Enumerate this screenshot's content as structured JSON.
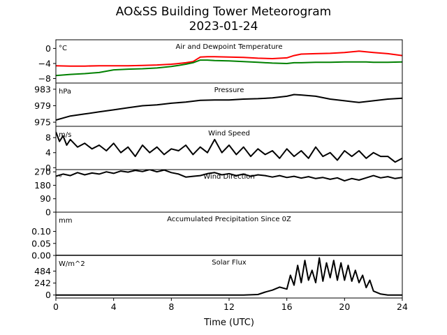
{
  "figure": {
    "title": "AO&SS Building Tower Meteorogram",
    "subtitle": "2023-01-24",
    "xlabel": "Time (UTC)",
    "xlim": [
      0,
      24
    ],
    "xticks": [
      "0",
      "4",
      "8",
      "12",
      "16",
      "20",
      "24"
    ]
  },
  "chart_data": [
    {
      "type": "line",
      "title": "Air and Dewpoint Temperature",
      "unit": "°C",
      "ylim": [
        -9.2,
        2.3
      ],
      "yticks": [
        0,
        -4,
        -8
      ],
      "ytick_labels": [
        "0",
        "−4",
        "−8"
      ],
      "x": [
        0,
        1,
        2,
        3,
        4,
        5,
        6,
        7,
        8,
        8.5,
        9,
        9.5,
        10,
        10.5,
        11,
        12,
        13,
        14,
        15,
        16,
        16.5,
        17,
        18,
        19,
        20,
        20.5,
        21,
        21.5,
        22,
        23,
        24
      ],
      "series": [
        {
          "color": "#ff0000",
          "values": [
            -4.6,
            -4.7,
            -4.7,
            -4.6,
            -4.6,
            -4.6,
            -4.5,
            -4.4,
            -4.2,
            -4.0,
            -3.8,
            -3.5,
            -2.3,
            -2.2,
            -2.2,
            -2.3,
            -2.4,
            -2.6,
            -2.7,
            -2.5,
            -1.9,
            -1.5,
            -1.4,
            -1.3,
            -1.1,
            -0.9,
            -0.7,
            -0.9,
            -1.1,
            -1.4,
            -1.9
          ]
        },
        {
          "color": "#008000",
          "values": [
            -7.2,
            -6.9,
            -6.7,
            -6.4,
            -5.7,
            -5.5,
            -5.4,
            -5.2,
            -4.8,
            -4.5,
            -4.2,
            -3.8,
            -3.1,
            -3.1,
            -3.2,
            -3.3,
            -3.5,
            -3.7,
            -3.9,
            -4.0,
            -3.8,
            -3.8,
            -3.7,
            -3.7,
            -3.6,
            -3.6,
            -3.6,
            -3.6,
            -3.7,
            -3.7,
            -3.6
          ]
        }
      ]
    },
    {
      "type": "line",
      "title": "Pressure",
      "unit": "hPa",
      "ylim": [
        974.0,
        984.5
      ],
      "yticks": [
        975,
        979,
        983
      ],
      "x": [
        0,
        1,
        2,
        3,
        4,
        5,
        6,
        7,
        8,
        9,
        10,
        11,
        12,
        13,
        14,
        15,
        16,
        16.5,
        17,
        18,
        19,
        20,
        21,
        22,
        23,
        24
      ],
      "series": [
        {
          "color": "#000000",
          "values": [
            975.5,
            976.5,
            977.0,
            977.5,
            978.0,
            978.5,
            979.0,
            979.2,
            979.6,
            979.9,
            980.3,
            980.4,
            980.4,
            980.6,
            980.7,
            980.9,
            981.3,
            981.7,
            981.6,
            981.3,
            980.6,
            980.2,
            979.8,
            980.2,
            980.6,
            980.8
          ]
        }
      ]
    },
    {
      "type": "line",
      "title": "Wind Speed",
      "unit": "m/s",
      "ylim": [
        -0.5,
        11.0
      ],
      "yticks": [
        0,
        4,
        8
      ],
      "x": [
        0,
        0.25,
        0.5,
        0.75,
        1,
        1.5,
        2,
        2.5,
        3,
        3.5,
        4,
        4.5,
        5,
        5.5,
        6,
        6.5,
        7,
        7.5,
        8,
        8.5,
        9,
        9.5,
        10,
        10.5,
        11,
        11.5,
        12,
        12.5,
        13,
        13.5,
        14,
        14.5,
        15,
        15.5,
        16,
        16.5,
        17,
        17.5,
        18,
        18.5,
        19,
        19.5,
        20,
        20.5,
        21,
        21.5,
        22,
        22.5,
        23,
        23.5,
        24
      ],
      "series": [
        {
          "color": "#000000",
          "values": [
            9.5,
            7.0,
            8.5,
            6.0,
            7.5,
            5.5,
            6.5,
            5.0,
            6.0,
            4.5,
            6.5,
            4.0,
            5.5,
            3.0,
            6.0,
            4.0,
            5.5,
            3.5,
            5.0,
            4.5,
            6.0,
            3.5,
            5.5,
            4.0,
            7.5,
            4.0,
            6.0,
            3.5,
            5.5,
            3.0,
            5.0,
            3.5,
            4.5,
            2.5,
            5.0,
            3.0,
            4.5,
            2.5,
            5.5,
            3.0,
            4.0,
            2.0,
            4.5,
            3.0,
            4.5,
            2.5,
            4.0,
            3.0,
            3.0,
            1.5,
            2.5
          ]
        }
      ]
    },
    {
      "type": "line",
      "title": "Wind Direction",
      "unit": "°",
      "ylim": [
        0,
        285
      ],
      "yticks": [
        0,
        90,
        180,
        270
      ],
      "x": [
        0,
        0.5,
        1,
        1.5,
        2,
        2.5,
        3,
        3.5,
        4,
        4.5,
        5,
        5.5,
        6,
        6.5,
        7,
        7.5,
        8,
        8.5,
        9,
        9.5,
        10,
        10.5,
        11,
        11.5,
        12,
        12.5,
        13,
        13.5,
        14,
        14.5,
        15,
        15.5,
        16,
        16.5,
        17,
        17.5,
        18,
        18.5,
        19,
        19.5,
        20,
        20.5,
        21,
        21.5,
        22,
        22.5,
        23,
        23.5,
        24
      ],
      "series": [
        {
          "color": "#000000",
          "values": [
            240,
            255,
            245,
            265,
            250,
            262,
            255,
            270,
            260,
            275,
            268,
            280,
            272,
            285,
            270,
            282,
            265,
            255,
            235,
            240,
            245,
            258,
            265,
            250,
            258,
            245,
            255,
            240,
            250,
            245,
            235,
            245,
            232,
            240,
            228,
            238,
            225,
            232,
            220,
            230,
            210,
            225,
            215,
            230,
            245,
            230,
            238,
            225,
            232
          ]
        }
      ]
    },
    {
      "type": "line",
      "title": "Accumulated Precipitation Since 0Z",
      "unit": "mm",
      "ylim": [
        0,
        0.18
      ],
      "yticks": [
        0.0,
        0.05,
        0.1
      ],
      "ytick_labels": [
        "0.00",
        "0.05",
        "0.10"
      ],
      "x": [
        0,
        24
      ],
      "series": [
        {
          "color": "#000000",
          "values": [
            0.0,
            0.0
          ]
        }
      ]
    },
    {
      "type": "line",
      "title": "Solar Flux",
      "unit": "W/m^2",
      "ylim": [
        -60,
        800
      ],
      "yticks": [
        0,
        242,
        484
      ],
      "x": [
        0,
        13,
        14,
        14.5,
        15,
        15.5,
        16,
        16.25,
        16.5,
        16.75,
        17,
        17.25,
        17.5,
        17.75,
        18,
        18.25,
        18.5,
        18.75,
        19,
        19.25,
        19.5,
        19.75,
        20,
        20.25,
        20.5,
        20.75,
        21,
        21.25,
        21.5,
        21.75,
        22,
        22.5,
        23,
        24
      ],
      "series": [
        {
          "color": "#000000",
          "values": [
            0,
            0,
            10,
            60,
            100,
            160,
            120,
            400,
            200,
            600,
            250,
            700,
            300,
            500,
            250,
            750,
            280,
            650,
            350,
            700,
            300,
            650,
            300,
            600,
            280,
            500,
            250,
            400,
            150,
            300,
            80,
            20,
            0,
            0
          ]
        }
      ]
    }
  ]
}
